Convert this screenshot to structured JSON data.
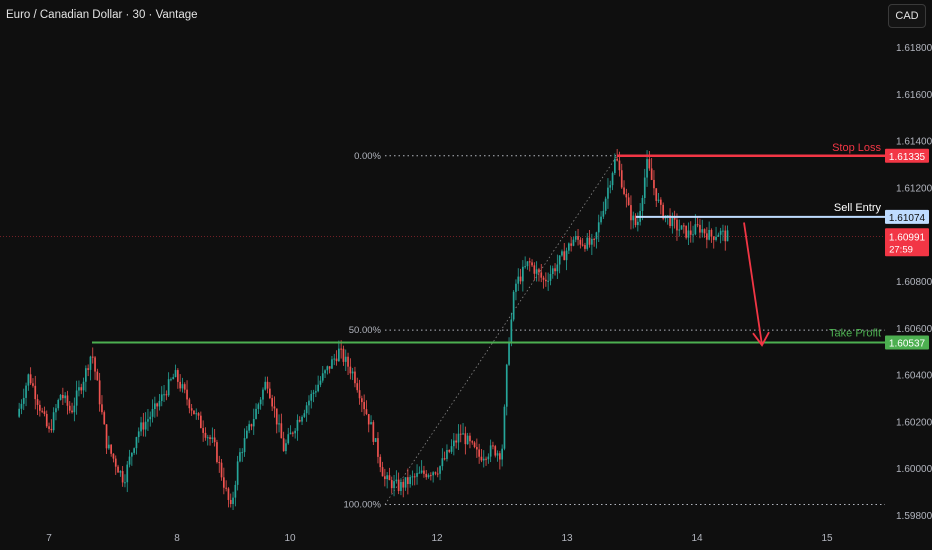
{
  "header": {
    "title": "Euro / Canadian Dollar · 30 · Vantage",
    "currency_button": "CAD"
  },
  "chart_data": {
    "type": "candlestick",
    "ylim": [
      1.5978,
      1.6198
    ],
    "y_ticks": [
      "1.61800",
      "1.61600",
      "1.61400",
      "1.61200",
      "1.60800",
      "1.60600",
      "1.60400",
      "1.60200",
      "1.60000",
      "1.59800"
    ],
    "x_ticks": [
      "7",
      "8",
      "10",
      "12",
      "13",
      "14",
      "15"
    ],
    "price_path": [
      [
        1.6022,
        18
      ],
      [
        1.604,
        30
      ],
      [
        1.6015,
        50
      ],
      [
        1.6032,
        62
      ],
      [
        1.6024,
        72
      ],
      [
        1.604,
        86
      ],
      [
        1.605,
        93
      ],
      [
        1.601,
        108
      ],
      [
        1.5995,
        125
      ],
      [
        1.6015,
        138
      ],
      [
        1.6025,
        156
      ],
      [
        1.604,
        176
      ],
      [
        1.602,
        200
      ],
      [
        1.601,
        215
      ],
      [
        1.5982,
        232
      ],
      [
        1.6005,
        240
      ],
      [
        1.6022,
        255
      ],
      [
        1.6038,
        268
      ],
      [
        1.6008,
        285
      ],
      [
        1.602,
        298
      ],
      [
        1.6035,
        318
      ],
      [
        1.605,
        340
      ],
      [
        1.604,
        355
      ],
      [
        1.6018,
        372
      ],
      [
        1.5995,
        386
      ],
      [
        1.5992,
        400
      ],
      [
        1.5997,
        420
      ],
      [
        1.6,
        440
      ],
      [
        1.6015,
        462
      ],
      [
        1.6005,
        480
      ],
      [
        1.6008,
        494
      ],
      [
        1.6006,
        503
      ],
      [
        1.6045,
        508
      ],
      [
        1.6078,
        516
      ],
      [
        1.6088,
        530
      ],
      [
        1.608,
        545
      ],
      [
        1.6088,
        560
      ],
      [
        1.6098,
        575
      ],
      [
        1.6095,
        595
      ],
      [
        1.6108,
        602
      ],
      [
        1.6133,
        617
      ],
      [
        1.611,
        630
      ],
      [
        1.6103,
        638
      ],
      [
        1.613,
        648
      ],
      [
        1.611,
        662
      ],
      [
        1.6103,
        678
      ],
      [
        1.61,
        690
      ],
      [
        1.6103,
        700
      ],
      [
        1.6099,
        712
      ],
      [
        1.6101,
        720
      ],
      [
        1.6099,
        727
      ]
    ],
    "fibonacci": {
      "levels": [
        {
          "label": "0.00%",
          "price": 1.61335
        },
        {
          "label": "50.00%",
          "price": 1.6059
        },
        {
          "label": "100.00%",
          "price": 1.59845
        }
      ]
    },
    "levels": {
      "stop_loss": {
        "label": "Stop Loss",
        "price": 1.61335,
        "price_label": "1.61335",
        "color": "#f23645"
      },
      "sell_entry": {
        "label": "Sell Entry",
        "price": 1.61074,
        "price_label": "1.61074",
        "color": "#bfdcff"
      },
      "take_profit": {
        "label": "Take Profit",
        "price": 1.60537,
        "price_label": "1.60537",
        "color": "#4caf50"
      },
      "current": {
        "price": 1.60991,
        "price_label": "1.60991",
        "countdown": "27:59",
        "color": "#f23645"
      }
    },
    "arrow": {
      "from_price": 1.6105,
      "to_price": 1.6056,
      "color": "#f23645"
    },
    "colors": {
      "up": "#26a69a",
      "down": "#ef5350",
      "background": "#0f0f0f",
      "grid_text": "#b2b5be"
    }
  }
}
